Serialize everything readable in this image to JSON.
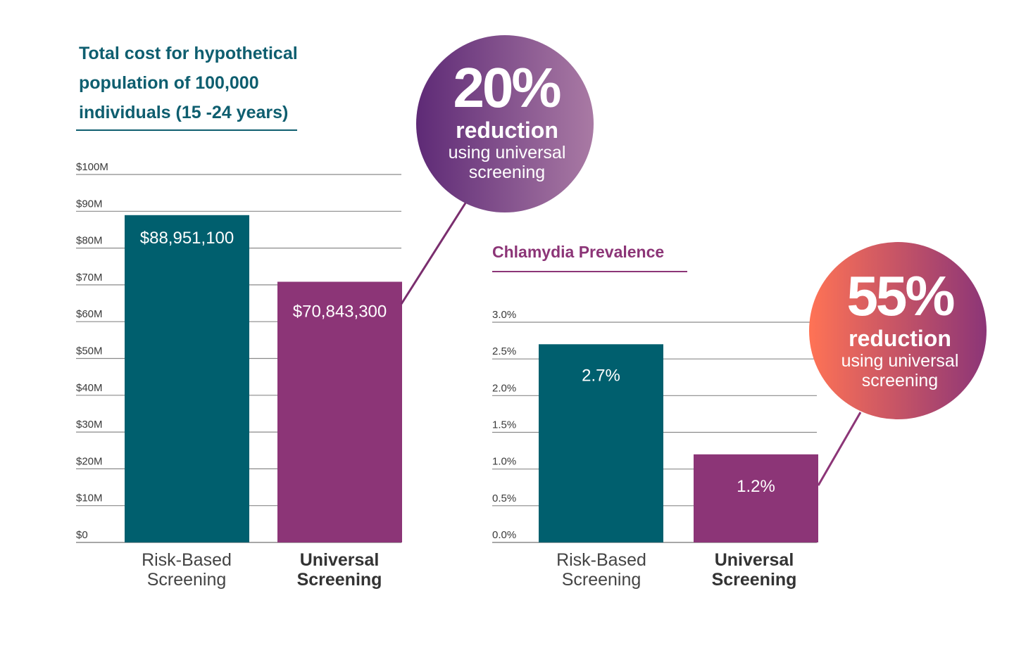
{
  "chart_data": [
    {
      "type": "bar",
      "title_lines": [
        "Total cost for hypothetical",
        "population of 100,000",
        "individuals (15 -24 years)"
      ],
      "categories": [
        {
          "line1": "Risk-Based",
          "line2": "Screening",
          "bold": false
        },
        {
          "line1": "Universal",
          "line2": "Screening",
          "bold": true
        }
      ],
      "values": [
        88951100,
        70843300
      ],
      "value_labels": [
        "$88,951,100",
        "$70,843,300"
      ],
      "ylim": [
        0,
        100000000
      ],
      "yticks": [
        0,
        10000000,
        20000000,
        30000000,
        40000000,
        50000000,
        60000000,
        70000000,
        80000000,
        90000000,
        100000000
      ],
      "ytick_labels": [
        "$0",
        "$10M",
        "$20M",
        "$30M",
        "$40M",
        "$50M",
        "$60M",
        "$70M",
        "$80M",
        "$90M",
        "$100M"
      ],
      "grid": true,
      "colors": [
        "#005f6e",
        "#8c3577"
      ],
      "callout": {
        "percent": "20%",
        "line1": "reduction",
        "line2": "using universal",
        "line3": "screening",
        "gradient": [
          "#5e2a76",
          "#a97aa4"
        ]
      }
    },
    {
      "type": "bar",
      "title_lines": [
        "Chlamydia Prevalence"
      ],
      "categories": [
        {
          "line1": "Risk-Based",
          "line2": "Screening",
          "bold": false
        },
        {
          "line1": "Universal",
          "line2": "Screening",
          "bold": true
        }
      ],
      "values": [
        2.7,
        1.2
      ],
      "value_labels": [
        "2.7%",
        "1.2%"
      ],
      "ylim": [
        0,
        3.0
      ],
      "yticks": [
        0,
        0.5,
        1.0,
        1.5,
        2.0,
        2.5,
        3.0
      ],
      "ytick_labels": [
        "0.0%",
        "0.5%",
        "1.0%",
        "1.5%",
        "2.0%",
        "2.5%",
        "3.0%"
      ],
      "grid": true,
      "colors": [
        "#005f6e",
        "#8c3577"
      ],
      "callout": {
        "percent": "55%",
        "line1": "reduction",
        "line2": "using universal",
        "line3": "screening",
        "gradient": [
          "#ff7355",
          "#8c3577"
        ]
      }
    }
  ]
}
